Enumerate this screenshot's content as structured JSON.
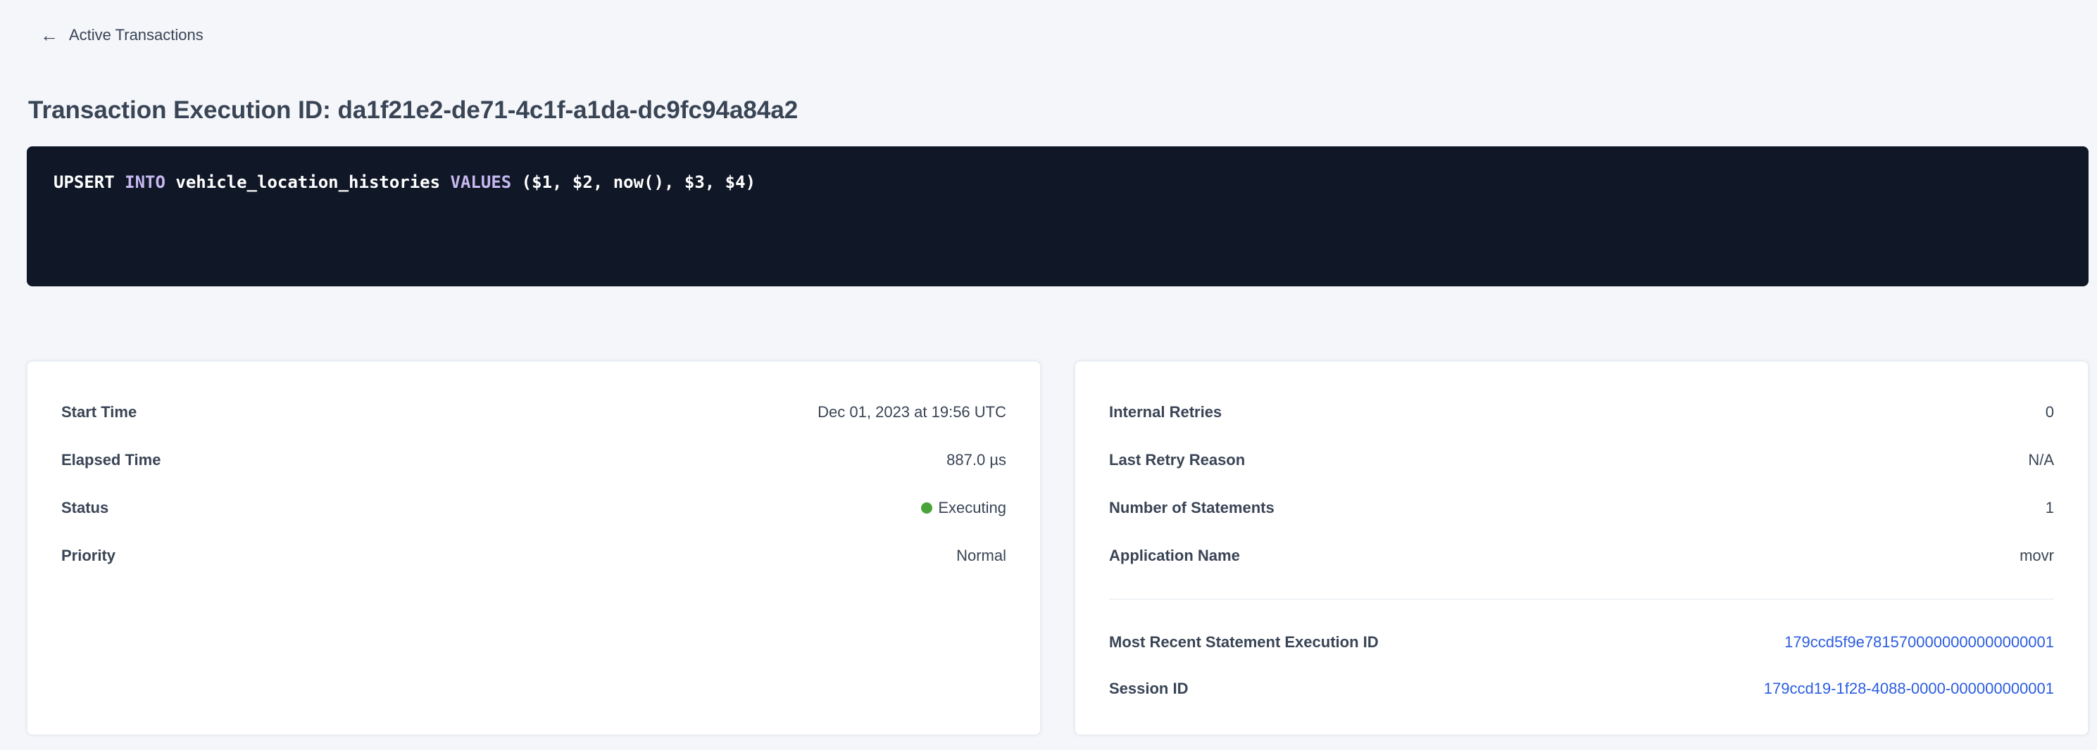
{
  "colors": {
    "page_bg": "#f4f6fa",
    "card_bg": "#ffffff",
    "card_border": "#e9edf3",
    "text": "#394455",
    "code_bg": "#101727",
    "code_plain": "#ffffff",
    "code_keyword": "#c7b8f0",
    "link": "#2b5de0",
    "status_dot": "#4aa43a",
    "divider": "#e2e8f0"
  },
  "header": {
    "back_icon": "←",
    "back_label": "Active Transactions",
    "title": "Transaction Execution ID: da1f21e2-de71-4c1f-a1da-dc9fc94a84a2"
  },
  "sql_box": {
    "tokens": {
      "0": {
        "text": "UPSERT "
      },
      "1": {
        "text": "INTO"
      },
      "2": {
        "text": " vehicle_location_histories "
      },
      "3": {
        "text": "VALUES"
      },
      "4": {
        "text": " ($1, $2, now(), $3, $4)"
      }
    }
  },
  "details_left": {
    "rows": {
      "0": {
        "label": "Start Time",
        "value": "Dec 01, 2023 at 19:56 UTC"
      },
      "1": {
        "label": "Elapsed Time",
        "value": "887.0 µs"
      },
      "2": {
        "label": "Status",
        "value": "Executing"
      },
      "3": {
        "label": "Priority",
        "value": "Normal"
      }
    }
  },
  "details_right": {
    "rows": {
      "0": {
        "label": "Internal Retries",
        "value": "0"
      },
      "1": {
        "label": "Last Retry Reason",
        "value": "N/A"
      },
      "2": {
        "label": "Number of Statements",
        "value": "1"
      },
      "3": {
        "label": "Application Name",
        "value": "movr"
      }
    },
    "links": {
      "0": {
        "label": "Most Recent Statement Execution ID",
        "value": "179ccd5f9e7815700000000000000001"
      },
      "1": {
        "label": "Session ID",
        "value": "179ccd19-1f28-4088-0000-000000000001"
      }
    }
  }
}
